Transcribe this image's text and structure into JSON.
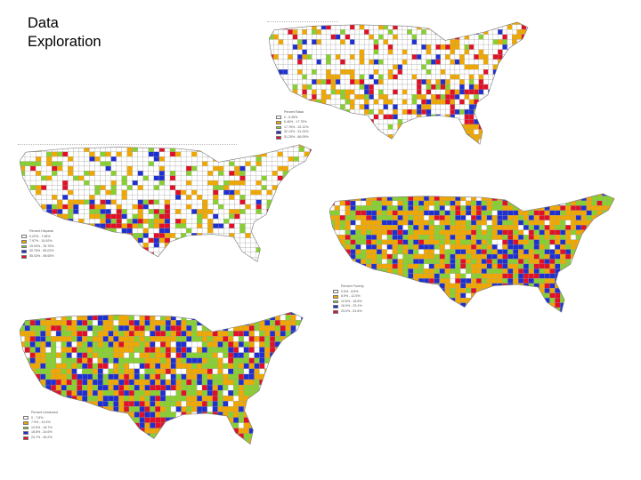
{
  "slide": {
    "title_lines": [
      "Data",
      "Exploration"
    ]
  },
  "maps": [
    {
      "id": "percent-black",
      "legend_title": "Percent Black",
      "legend_labels": [
        "0 - 6.45%",
        "6.46% - 17.75%",
        "17.76% - 32.12%",
        "32.13% - 51.24%",
        "51.25% - 86.05%"
      ],
      "colors": [
        "#ffffff",
        "#f0a800",
        "#88d030",
        "#2030d0",
        "#e01028"
      ],
      "weights": [
        0.66,
        0.17,
        0.06,
        0.05,
        0.06
      ]
    },
    {
      "id": "percent-hispanic",
      "legend_title": "Percent Hispanic",
      "legend_labels": [
        "0.22% - 7.96%",
        "7.97% - 15.92%",
        "15.93% - 30.75%",
        "30.76% - 55.02%",
        "55.03% - 98.65%"
      ],
      "colors": [
        "#ffffff",
        "#f0a800",
        "#88d030",
        "#2030d0",
        "#e01028"
      ],
      "weights": [
        0.68,
        0.14,
        0.09,
        0.05,
        0.04
      ]
    },
    {
      "id": "percent-poverty",
      "legend_title": "Percent Poverty",
      "legend_labels": [
        "0.5% - 8.8%",
        "8.9% - 12.5%",
        "12.6% - 16.8%",
        "16.9% - 23.1%",
        "23.2% - 51.6%"
      ],
      "colors": [
        "#ffffff",
        "#f0a800",
        "#88d030",
        "#2030d0",
        "#e01028"
      ],
      "weights": [
        0.05,
        0.4,
        0.27,
        0.2,
        0.08
      ]
    },
    {
      "id": "percent-uninsured",
      "legend_title": "Percent Uninsured",
      "legend_labels": [
        "0 - 7.8%",
        "7.9% - 13.4%",
        "13.5% - 18.7%",
        "18.8% - 24.6%",
        "24.7% - 45.2%"
      ],
      "colors": [
        "#ffffff",
        "#f0a800",
        "#88d030",
        "#2030d0",
        "#e01028"
      ],
      "weights": [
        0.1,
        0.32,
        0.28,
        0.17,
        0.13
      ]
    }
  ]
}
